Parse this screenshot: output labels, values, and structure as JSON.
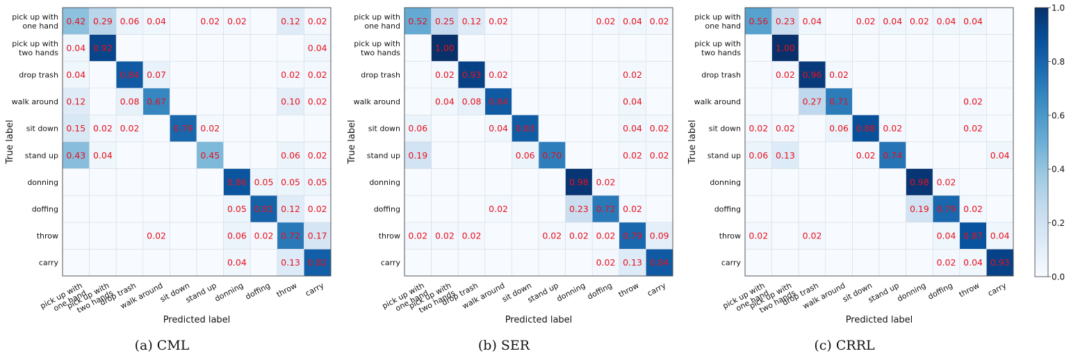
{
  "chart_data": [
    {
      "type": "heatmap",
      "caption": "(a)  CML",
      "xlabel": "Predicted label",
      "ylabel": "True label",
      "labels": [
        "pick up with\none hand",
        "pick up with\ntwo hands",
        "drop trash",
        "walk around",
        "sit down",
        "stand up",
        "donning",
        "doffing",
        "throw",
        "carry"
      ],
      "matrix": [
        [
          0.42,
          0.29,
          0.06,
          0.04,
          null,
          0.02,
          0.02,
          null,
          0.12,
          0.02
        ],
        [
          0.04,
          0.92,
          null,
          null,
          null,
          null,
          null,
          null,
          null,
          0.04
        ],
        [
          0.04,
          null,
          0.84,
          0.07,
          null,
          null,
          null,
          null,
          0.02,
          0.02
        ],
        [
          0.12,
          null,
          0.08,
          0.67,
          null,
          null,
          null,
          null,
          0.1,
          0.02
        ],
        [
          0.15,
          0.02,
          0.02,
          null,
          0.79,
          0.02,
          null,
          null,
          null,
          null
        ],
        [
          0.43,
          0.04,
          null,
          null,
          null,
          0.45,
          null,
          null,
          0.06,
          0.02
        ],
        [
          null,
          null,
          null,
          null,
          null,
          null,
          0.86,
          0.05,
          0.05,
          0.05
        ],
        [
          null,
          null,
          null,
          null,
          null,
          null,
          0.05,
          0.81,
          0.12,
          0.02
        ],
        [
          null,
          null,
          null,
          0.02,
          null,
          null,
          0.06,
          0.02,
          0.72,
          0.17
        ],
        [
          null,
          null,
          null,
          null,
          null,
          null,
          0.04,
          null,
          0.13,
          0.82
        ]
      ]
    },
    {
      "type": "heatmap",
      "caption": "(b)  SER",
      "xlabel": "Predicted label",
      "ylabel": "True label",
      "labels": [
        "pick up with\none hand",
        "pick up with\ntwo hands",
        "drop trash",
        "walk around",
        "sit down",
        "stand up",
        "donning",
        "doffing",
        "throw",
        "carry"
      ],
      "matrix": [
        [
          0.52,
          0.25,
          0.12,
          0.02,
          null,
          null,
          null,
          0.02,
          0.04,
          0.02
        ],
        [
          null,
          1.0,
          null,
          null,
          null,
          null,
          null,
          null,
          null,
          null
        ],
        [
          null,
          0.02,
          0.93,
          0.02,
          null,
          null,
          null,
          null,
          0.02,
          null
        ],
        [
          null,
          0.04,
          0.08,
          0.84,
          null,
          null,
          null,
          null,
          0.04,
          null
        ],
        [
          0.06,
          null,
          null,
          0.04,
          0.83,
          null,
          null,
          null,
          0.04,
          0.02
        ],
        [
          0.19,
          null,
          null,
          null,
          0.06,
          0.7,
          null,
          null,
          0.02,
          0.02
        ],
        [
          null,
          null,
          null,
          null,
          null,
          null,
          0.98,
          0.02,
          null,
          null
        ],
        [
          null,
          null,
          null,
          0.02,
          null,
          null,
          0.23,
          0.72,
          0.02,
          null
        ],
        [
          0.02,
          0.02,
          0.02,
          null,
          null,
          0.02,
          0.02,
          0.02,
          0.79,
          0.09
        ],
        [
          null,
          null,
          null,
          null,
          null,
          null,
          null,
          0.02,
          0.13,
          0.84
        ]
      ]
    },
    {
      "type": "heatmap",
      "caption": "(c)  CRRL",
      "xlabel": "Predicted label",
      "ylabel": "True label",
      "labels": [
        "pick up with\none hand",
        "pick up with\ntwo hands",
        "drop trash",
        "walk around",
        "sit down",
        "stand up",
        "donning",
        "doffing",
        "throw",
        "carry"
      ],
      "matrix": [
        [
          0.56,
          0.23,
          0.04,
          null,
          0.02,
          0.04,
          0.02,
          0.04,
          0.04,
          null
        ],
        [
          null,
          1.0,
          null,
          null,
          null,
          null,
          null,
          null,
          null,
          null
        ],
        [
          null,
          0.02,
          0.96,
          0.02,
          null,
          null,
          null,
          null,
          null,
          null
        ],
        [
          null,
          null,
          0.27,
          0.71,
          null,
          null,
          null,
          null,
          0.02,
          null
        ],
        [
          0.02,
          0.02,
          null,
          0.06,
          0.88,
          0.02,
          null,
          null,
          0.02,
          null
        ],
        [
          0.06,
          0.13,
          null,
          null,
          0.02,
          0.74,
          null,
          null,
          null,
          0.04
        ],
        [
          null,
          null,
          null,
          null,
          null,
          null,
          0.98,
          0.02,
          null,
          null
        ],
        [
          null,
          null,
          null,
          null,
          null,
          null,
          0.19,
          0.79,
          0.02,
          null
        ],
        [
          0.02,
          null,
          0.02,
          null,
          null,
          null,
          null,
          0.04,
          0.87,
          0.04
        ],
        [
          null,
          null,
          null,
          null,
          null,
          null,
          null,
          0.02,
          0.04,
          0.93
        ]
      ]
    }
  ],
  "colorbar": {
    "ticks": [
      "0.0",
      "0.2",
      "0.4",
      "0.6",
      "0.8",
      "1.0"
    ],
    "range": [
      0,
      1
    ]
  }
}
